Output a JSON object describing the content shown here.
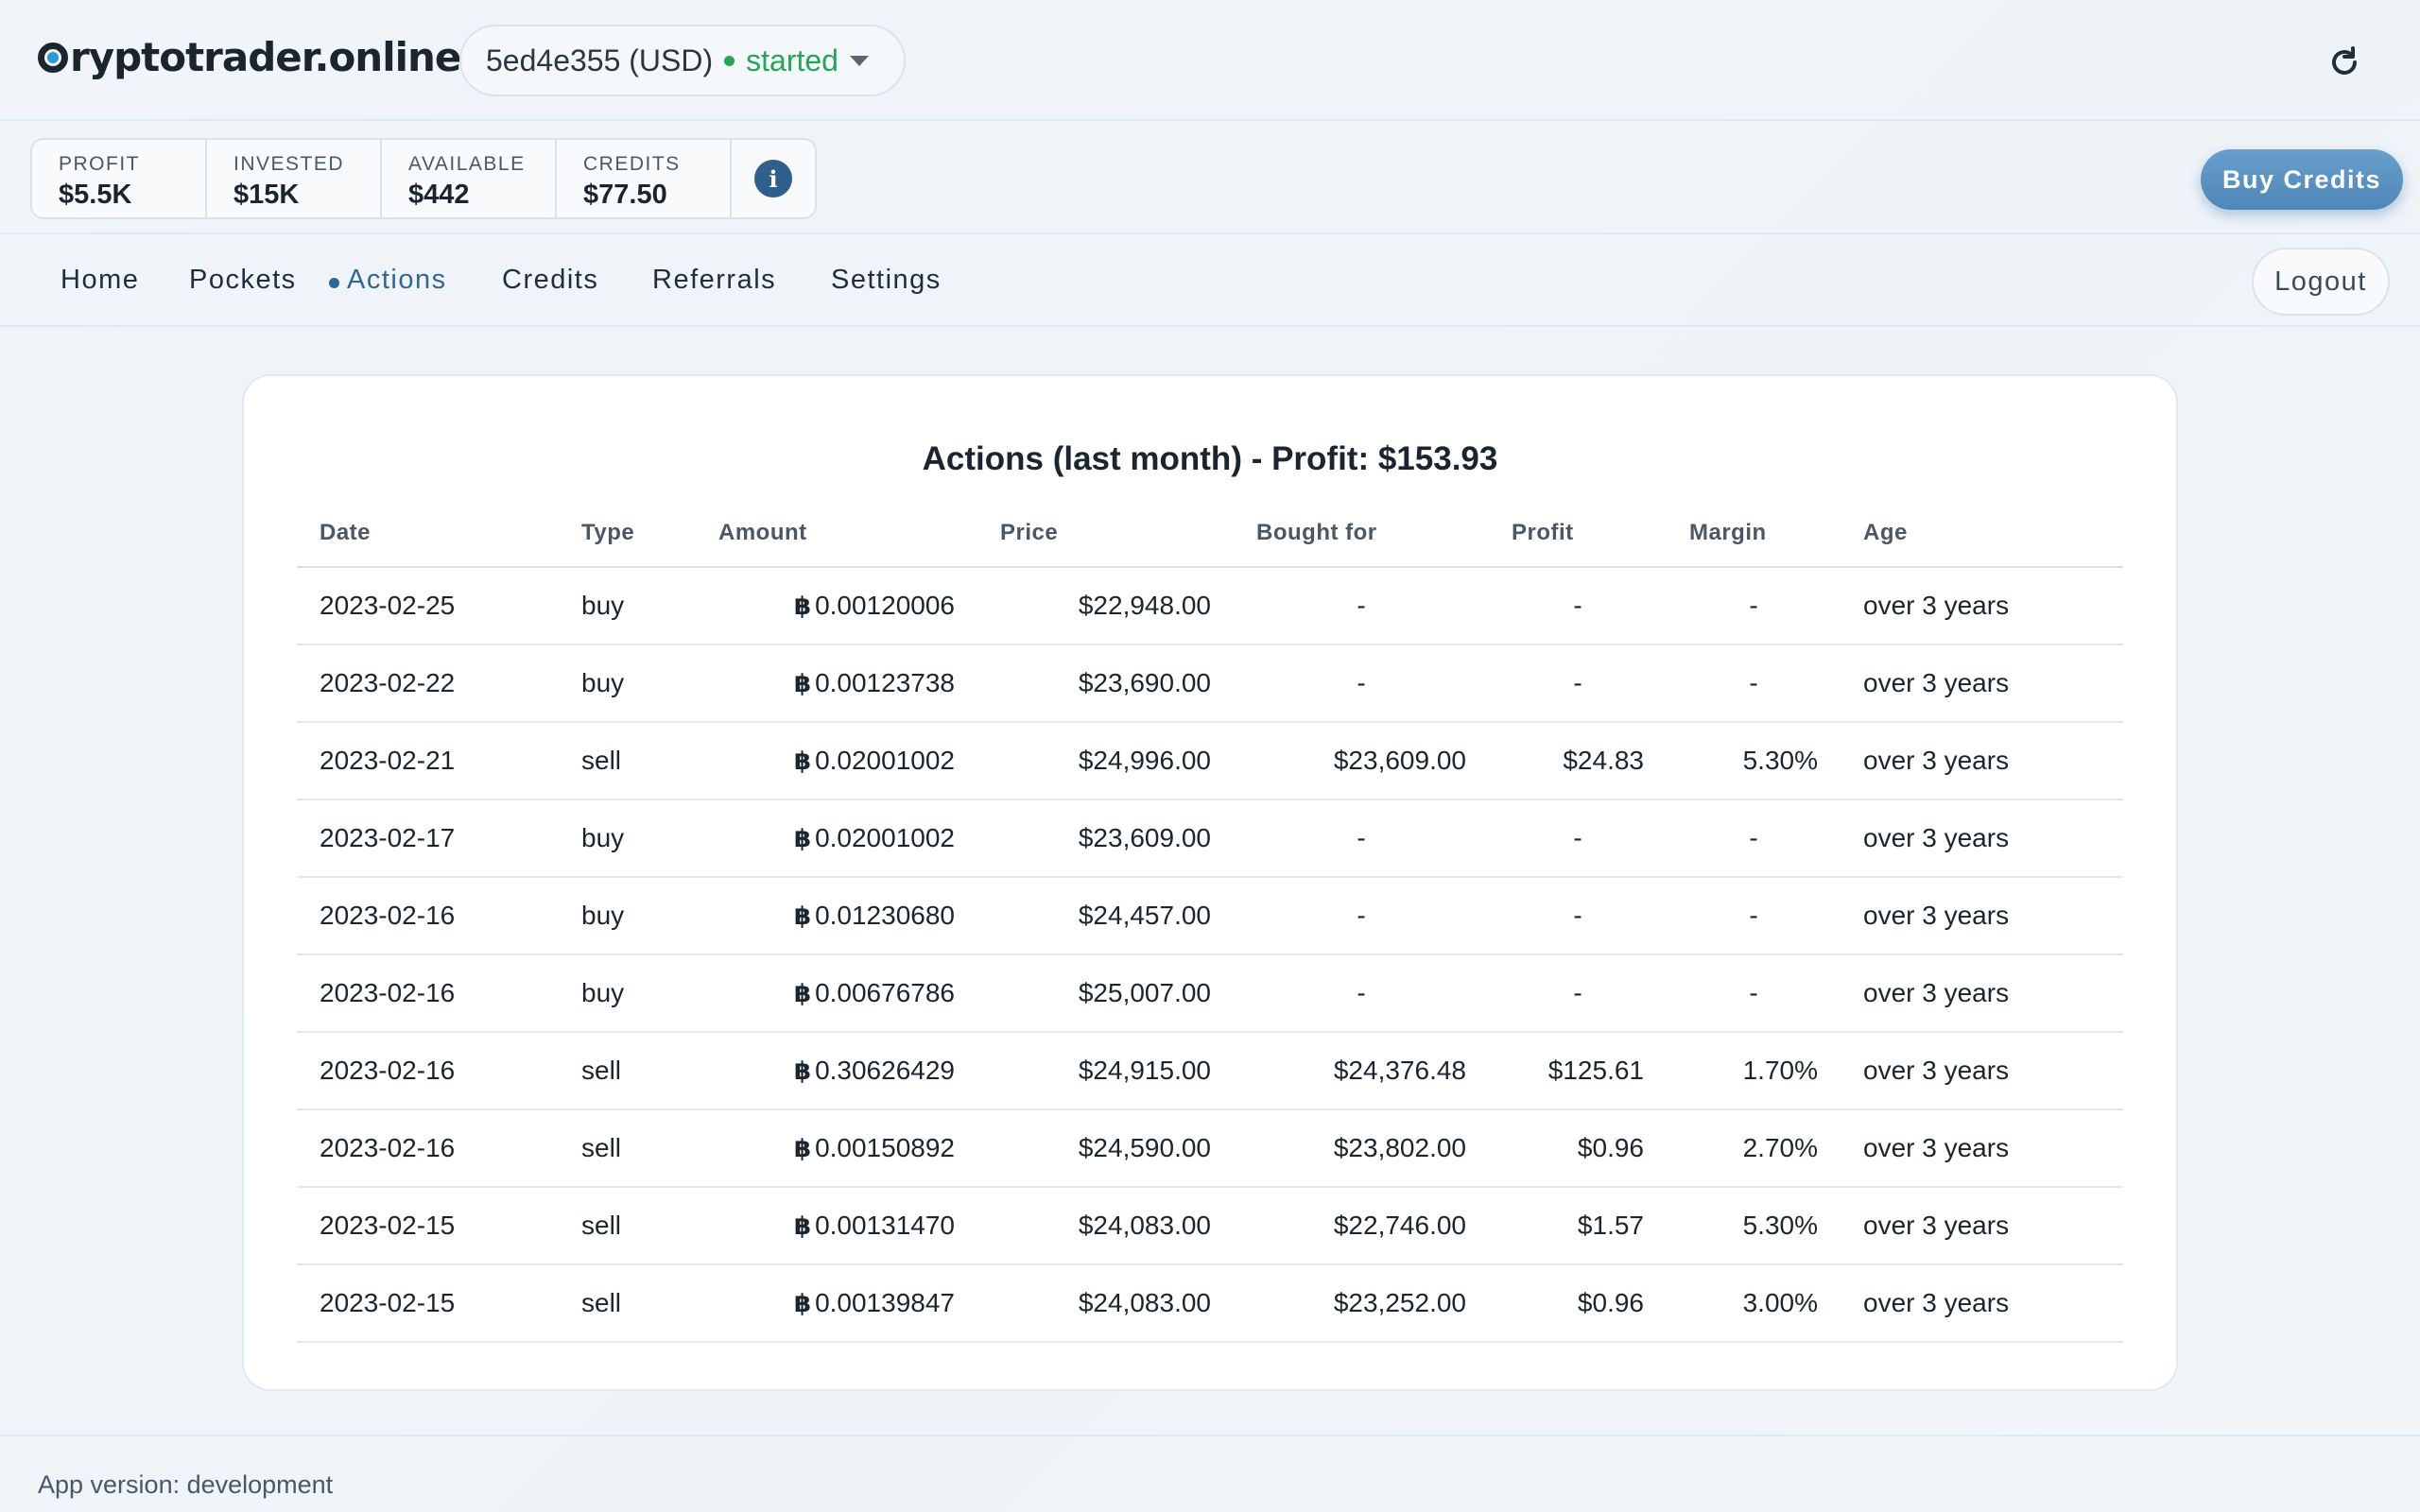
{
  "header": {
    "logo": "ryptotrader.online",
    "logo_icon": "cryptotrader-logo-icon",
    "pocket": {
      "name": "5ed4e355 (USD)",
      "status": "started",
      "status_color": "#27a35a"
    },
    "refresh_icon": "refresh-icon"
  },
  "stats": [
    {
      "label": "PROFIT",
      "value": "$5.5K"
    },
    {
      "label": "INVESTED",
      "value": "$15K"
    },
    {
      "label": "AVAILABLE",
      "value": "$442"
    },
    {
      "label": "CREDITS",
      "value": "$77.50"
    }
  ],
  "info_icon": "i",
  "buy_credits_label": "Buy Credits",
  "nav": {
    "items": [
      {
        "label": "Home"
      },
      {
        "label": "Pockets"
      },
      {
        "label": "Actions",
        "active": true
      },
      {
        "label": "Credits"
      },
      {
        "label": "Referrals"
      },
      {
        "label": "Settings"
      }
    ],
    "logout_label": "Logout"
  },
  "actions": {
    "title": "Actions (last month) - Profit: $153.93",
    "currency_symbol": "฿",
    "columns": [
      "Date",
      "Type",
      "Amount",
      "Price",
      "Bought for",
      "Profit",
      "Margin",
      "Age"
    ],
    "rows": [
      [
        "2023-02-25",
        "buy",
        "0.00120006",
        "$22,948.00",
        "-",
        "-",
        "-",
        "over 3 years"
      ],
      [
        "2023-02-22",
        "buy",
        "0.00123738",
        "$23,690.00",
        "-",
        "-",
        "-",
        "over 3 years"
      ],
      [
        "2023-02-21",
        "sell",
        "0.02001002",
        "$24,996.00",
        "$23,609.00",
        "$24.83",
        "5.30%",
        "over 3 years"
      ],
      [
        "2023-02-17",
        "buy",
        "0.02001002",
        "$23,609.00",
        "-",
        "-",
        "-",
        "over 3 years"
      ],
      [
        "2023-02-16",
        "buy",
        "0.01230680",
        "$24,457.00",
        "-",
        "-",
        "-",
        "over 3 years"
      ],
      [
        "2023-02-16",
        "buy",
        "0.00676786",
        "$25,007.00",
        "-",
        "-",
        "-",
        "over 3 years"
      ],
      [
        "2023-02-16",
        "sell",
        "0.30626429",
        "$24,915.00",
        "$24,376.48",
        "$125.61",
        "1.70%",
        "over 3 years"
      ],
      [
        "2023-02-16",
        "sell",
        "0.00150892",
        "$24,590.00",
        "$23,802.00",
        "$0.96",
        "2.70%",
        "over 3 years"
      ],
      [
        "2023-02-15",
        "sell",
        "0.00131470",
        "$24,083.00",
        "$22,746.00",
        "$1.57",
        "5.30%",
        "over 3 years"
      ],
      [
        "2023-02-15",
        "sell",
        "0.00139847",
        "$24,083.00",
        "$23,252.00",
        "$0.96",
        "3.00%",
        "over 3 years"
      ]
    ]
  },
  "footer": {
    "version_text": "App version: development"
  },
  "colors": {
    "accent": "#2f6796",
    "buy_button": "#5a92c4",
    "status_green": "#27a35a"
  }
}
